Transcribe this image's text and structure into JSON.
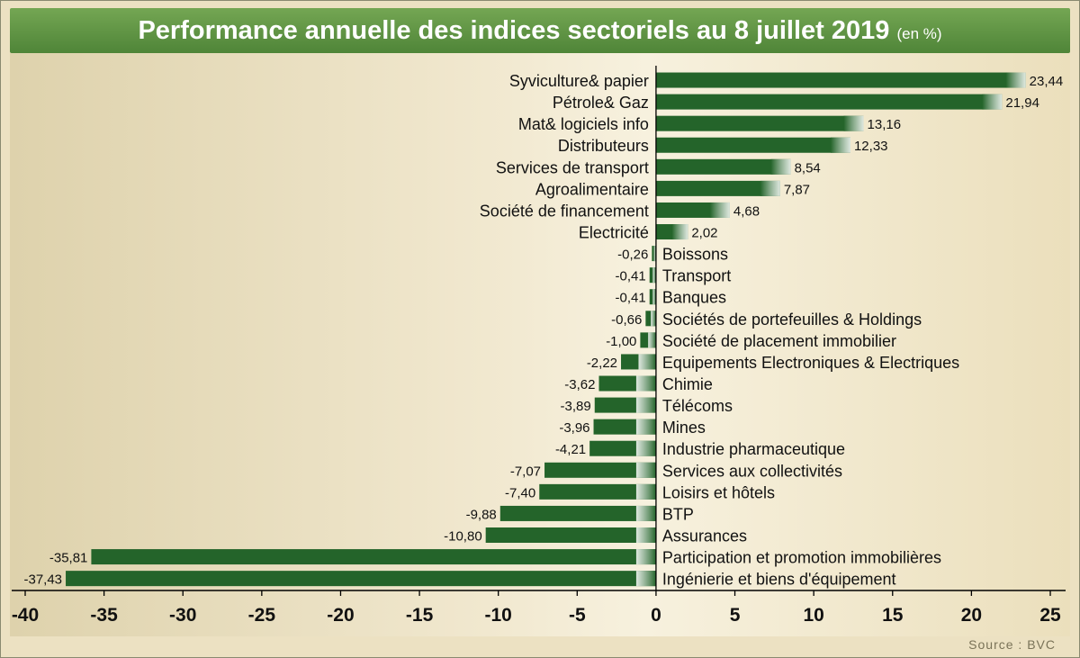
{
  "chart_data": {
    "type": "bar",
    "orientation": "horizontal",
    "title": "Performance annuelle des indices sectoriels au 8 juillet 2019",
    "title_unit": "(en %)",
    "source": "Source : BVC",
    "xlim": [
      -40,
      25
    ],
    "x_ticks": [
      "-40",
      "-35",
      "-30",
      "-25",
      "-20",
      "-15",
      "-10",
      "-5",
      "0",
      "5",
      "10",
      "15",
      "20",
      "25"
    ],
    "grid": false,
    "bar_color": "#24642a",
    "categories": [
      "Syviculture& papier",
      "Pétrole& Gaz",
      "Mat& logiciels info",
      "Distributeurs",
      "Services de transport",
      "Agroalimentaire",
      "Société de financement",
      "Electricité",
      "Boissons",
      "Transport",
      "Banques",
      "Sociétés de portefeuilles & Holdings",
      "Société de placement immobilier",
      "Equipements Electroniques & Electriques",
      "Chimie",
      "Télécoms",
      "Mines",
      "Industrie pharmaceutique",
      "Services aux collectivités",
      "Loisirs et hôtels",
      "BTP",
      "Assurances",
      "Participation et promotion immobilières",
      "Ingénierie et biens d'équipement"
    ],
    "values": [
      23.44,
      21.94,
      13.16,
      12.33,
      8.54,
      7.87,
      4.68,
      2.02,
      -0.26,
      -0.41,
      -0.41,
      -0.66,
      -1.0,
      -2.22,
      -3.62,
      -3.89,
      -3.96,
      -4.21,
      -7.07,
      -7.4,
      -9.88,
      -10.8,
      -35.81,
      -37.43
    ],
    "value_labels": [
      "23,44",
      "21,94",
      "13,16",
      "12,33",
      "8,54",
      "7,87",
      "4,68",
      "2,02",
      "-0,26",
      "-0,41",
      "-0,41",
      "-0,66",
      "-1,00",
      "-2,22",
      "-3,62",
      "-3,89",
      "-3,96",
      "-4,21",
      "-7,07",
      "-7,40",
      "-9,88",
      "-10,80",
      "-35,81",
      "-37,43"
    ]
  }
}
